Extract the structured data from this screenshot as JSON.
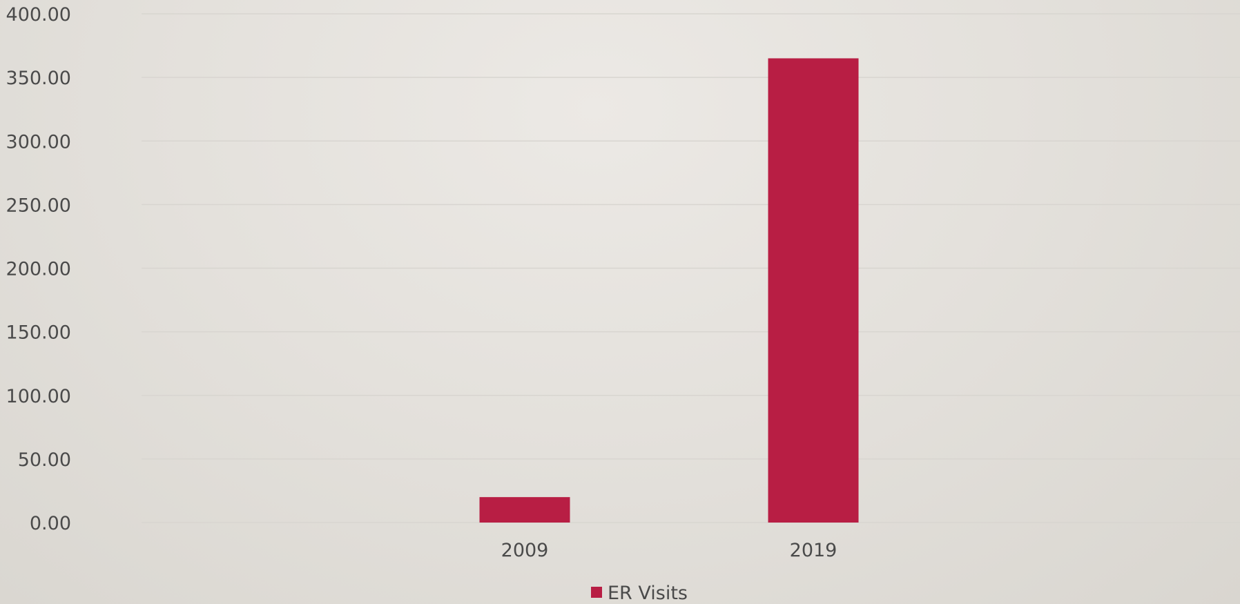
{
  "chart_data": {
    "type": "bar",
    "categories": [
      "2009",
      "2019"
    ],
    "series": [
      {
        "name": "ER Visits",
        "values": [
          20,
          365
        ],
        "color": "#b81e44"
      }
    ],
    "y_ticks": [
      "0.00",
      "50.00",
      "100.00",
      "150.00",
      "200.00",
      "250.00",
      "300.00",
      "350.00",
      "400.00"
    ],
    "ylim": [
      0,
      400
    ],
    "ystep": 50,
    "grid": true,
    "legend_position": "bottom-center",
    "title": "",
    "xlabel": "",
    "ylabel": ""
  }
}
